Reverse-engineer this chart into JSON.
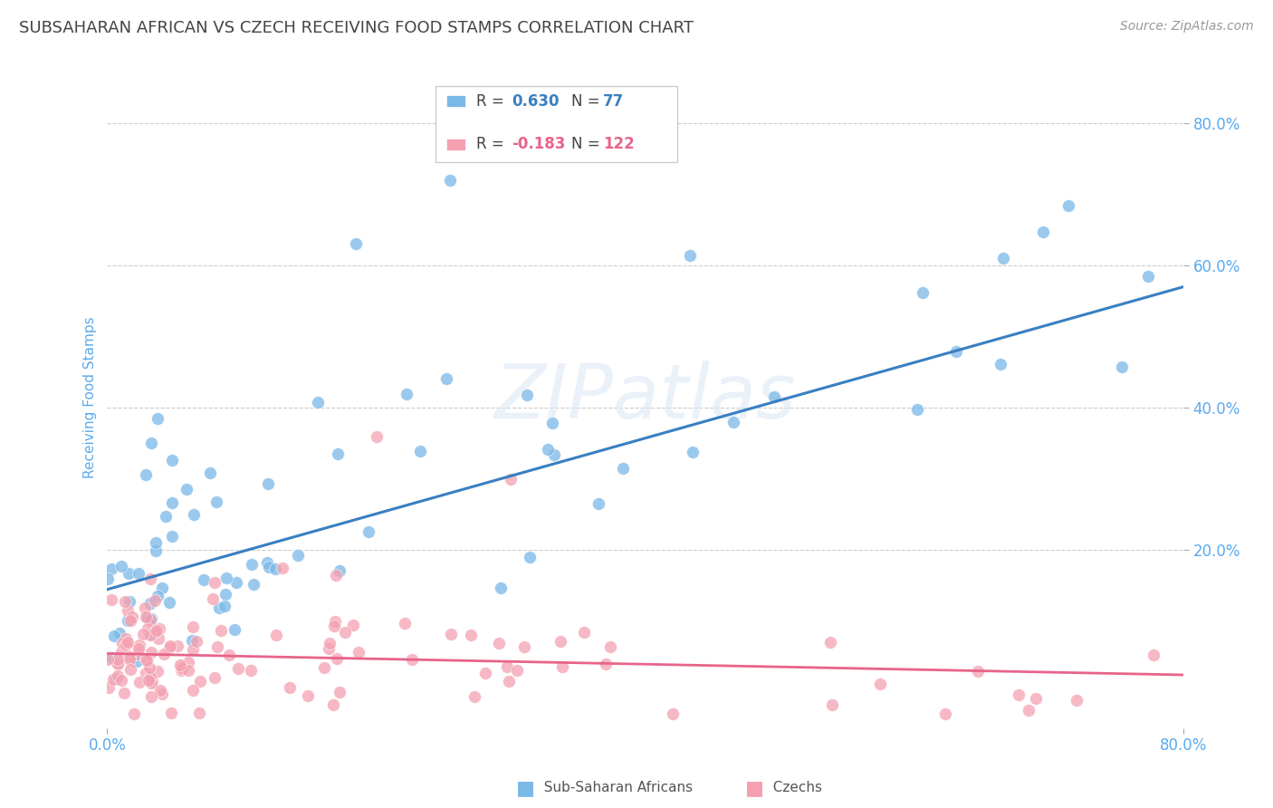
{
  "title": "SUBSAHARAN AFRICAN VS CZECH RECEIVING FOOD STAMPS CORRELATION CHART",
  "source": "Source: ZipAtlas.com",
  "ylabel": "Receiving Food Stamps",
  "ytick_labels": [
    "80.0%",
    "60.0%",
    "40.0%",
    "20.0%"
  ],
  "ytick_values": [
    0.8,
    0.6,
    0.4,
    0.2
  ],
  "xlim": [
    0.0,
    0.8
  ],
  "ylim": [
    -0.05,
    0.88
  ],
  "blue_R": 0.63,
  "blue_N": 77,
  "pink_R": -0.183,
  "pink_N": 122,
  "blue_color": "#7ab8e8",
  "pink_color": "#f4a0b0",
  "blue_line_color": "#3a7fc1",
  "pink_line_color": "#e8648a",
  "blue_line_start_y": 0.145,
  "blue_line_end_y": 0.57,
  "pink_line_start_y": 0.055,
  "pink_line_end_y": 0.025,
  "legend_blue_label": "Sub-Saharan Africans",
  "legend_pink_label": "Czechs",
  "watermark": "ZIPatlas",
  "title_color": "#444444",
  "axis_label_color": "#5aaaee",
  "tick_color": "#5aaaee",
  "background_color": "#ffffff",
  "grid_color": "#cccccc",
  "title_fontsize": 13,
  "label_fontsize": 11,
  "tick_fontsize": 12,
  "legend_fontsize": 12,
  "legend_R_color": "#3a7fc1",
  "legend_N_color": "#3a7fc1",
  "legend_pink_R_color": "#e8648a",
  "legend_pink_N_color": "#e8648a"
}
